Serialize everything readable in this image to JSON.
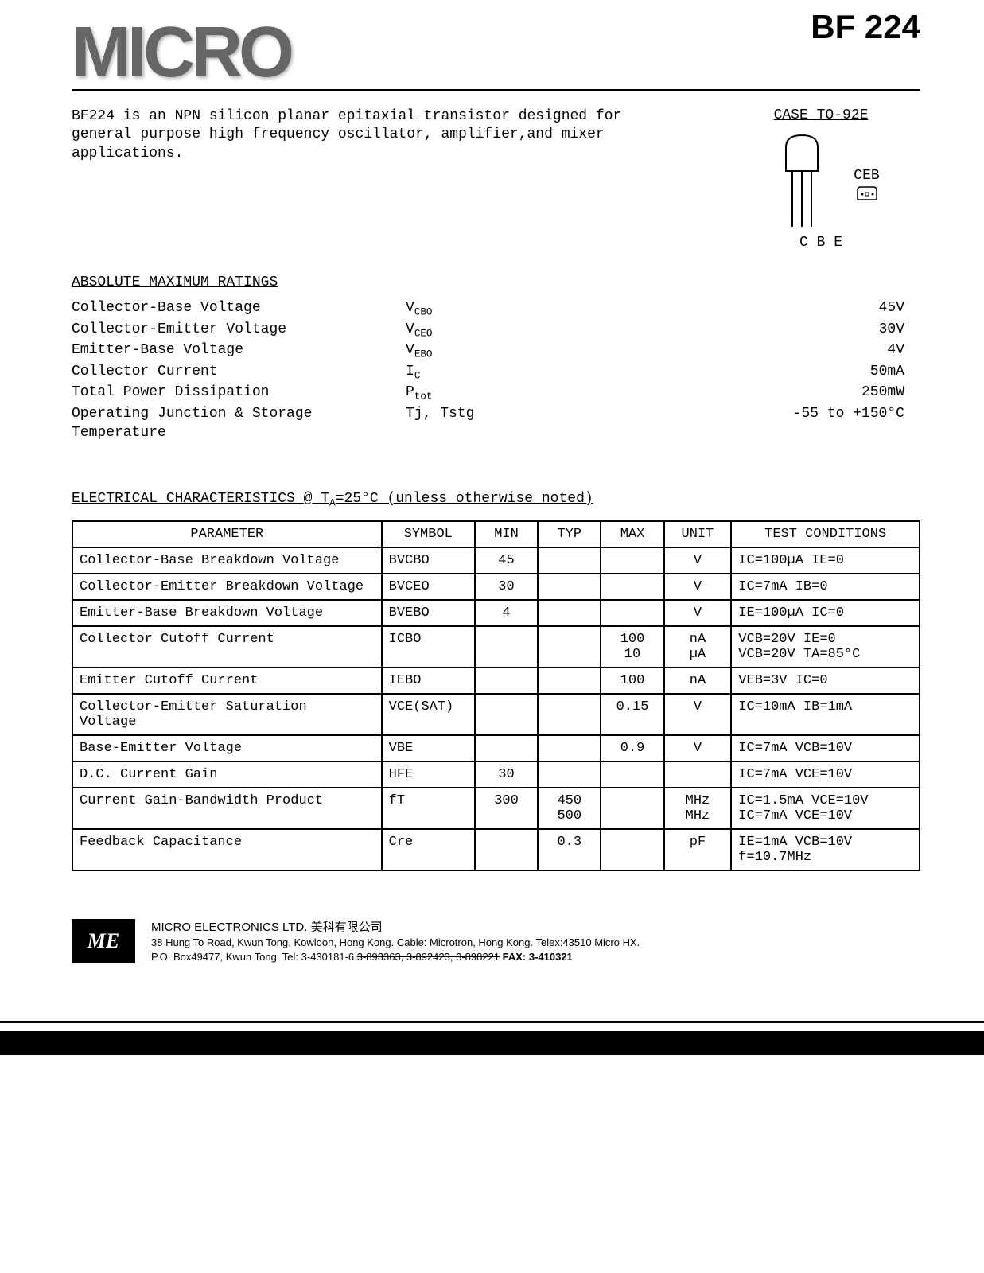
{
  "header": {
    "logo": "MICRO",
    "part_number": "BF 224"
  },
  "description": "BF224 is an NPN silicon planar epitaxial transistor designed for general purpose high frequency oscillator, amplifier,and mixer applications.",
  "case": {
    "title": "CASE TO-92E",
    "pin_label_side": "CEB",
    "pin_label_bottom": "C B E"
  },
  "ratings": {
    "title": "ABSOLUTE MAXIMUM RATINGS",
    "rows": [
      {
        "param": "Collector-Base Voltage",
        "symbol": "V",
        "sub": "CBO",
        "value": "45V"
      },
      {
        "param": "Collector-Emitter Voltage",
        "symbol": "V",
        "sub": "CEO",
        "value": "30V"
      },
      {
        "param": "Emitter-Base Voltage",
        "symbol": "V",
        "sub": "EBO",
        "value": "4V"
      },
      {
        "param": "Collector Current",
        "symbol": "I",
        "sub": "C",
        "value": "50mA"
      },
      {
        "param": "Total Power Dissipation",
        "symbol": "P",
        "sub": "tot",
        "value": "250mW"
      },
      {
        "param": "Operating Junction & Storage Temperature",
        "symbol": "Tj, Tstg",
        "sub": "",
        "value": "-55 to +150°C"
      }
    ]
  },
  "electrical": {
    "title_prefix": "ELECTRICAL CHARACTERISTICS @ ",
    "title_temp": "T",
    "title_temp_sub": "A",
    "title_suffix": "=25°C (unless otherwise noted)",
    "headers": {
      "parameter": "PARAMETER",
      "symbol": "SYMBOL",
      "min": "MIN",
      "typ": "TYP",
      "max": "MAX",
      "unit": "UNIT",
      "test": "TEST CONDITIONS"
    },
    "rows": [
      {
        "param": "Collector-Base Breakdown Voltage",
        "symbol": "BVCBO",
        "min": "45",
        "typ": "",
        "max": "",
        "unit": "V",
        "test": "IC=100µA   IE=0"
      },
      {
        "param": "Collector-Emitter Breakdown Voltage",
        "symbol": "BVCEO",
        "min": "30",
        "typ": "",
        "max": "",
        "unit": "V",
        "test": "IC=7mA    IB=0"
      },
      {
        "param": "Emitter-Base Breakdown Voltage",
        "symbol": "BVEBO",
        "min": "4",
        "typ": "",
        "max": "",
        "unit": "V",
        "test": "IE=100µA   IC=0"
      },
      {
        "param": "Collector Cutoff Current",
        "symbol": "ICBO",
        "min": "",
        "typ": "",
        "max": "100\n10",
        "unit": "nA\nµA",
        "test": "VCB=20V   IE=0\nVCB=20V TA=85°C"
      },
      {
        "param": "Emitter Cutoff Current",
        "symbol": "IEBO",
        "min": "",
        "typ": "",
        "max": "100",
        "unit": "nA",
        "test": "VEB=3V    IC=0"
      },
      {
        "param": "Collector-Emitter Saturation\n    Voltage",
        "symbol": "VCE(SAT)",
        "min": "",
        "typ": "",
        "max": "0.15",
        "unit": "V",
        "test": "IC=10mA  IB=1mA"
      },
      {
        "param": "Base-Emitter Voltage",
        "symbol": "VBE",
        "min": "",
        "typ": "",
        "max": "0.9",
        "unit": "V",
        "test": "IC=7mA VCB=10V"
      },
      {
        "param": "D.C. Current Gain",
        "symbol": "HFE",
        "min": "30",
        "typ": "",
        "max": "",
        "unit": "",
        "test": "IC=7mA VCE=10V"
      },
      {
        "param": "Current Gain-Bandwidth Product",
        "symbol": "fT",
        "min": "300",
        "typ": "450\n500",
        "max": "",
        "unit": "MHz\nMHz",
        "test": "IC=1.5mA VCE=10V\nIC=7mA   VCE=10V"
      },
      {
        "param": "Feedback Capacitance",
        "symbol": "Cre",
        "min": "",
        "typ": "0.3",
        "max": "",
        "unit": "pF",
        "test": "IE=1mA   VCB=10V\nf=10.7MHz"
      }
    ]
  },
  "footer": {
    "logo": "ME",
    "company": "MICRO ELECTRONICS LTD. 美科有限公司",
    "address": "38 Hung To Road, Kwun Tong, Kowloon, Hong Kong. Cable: Microtron, Hong Kong. Telex:43510 Micro HX.",
    "contact_prefix": "P.O. Box49477, Kwun Tong.  Tel: 3-430181-6 ",
    "contact_strike": "3-893363, 3-892423, 3-898221",
    "fax": "  FAX: 3-410321"
  }
}
